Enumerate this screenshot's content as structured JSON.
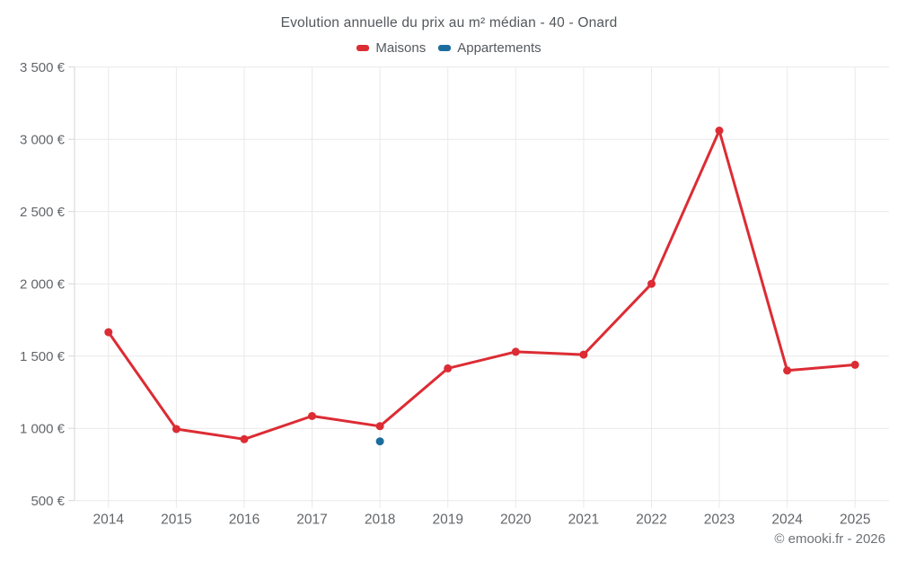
{
  "title": "Evolution annuelle du prix au m² médian - 40 - Onard",
  "attribution": "© emooki.fr - 2026",
  "colors": {
    "background": "#ffffff",
    "grid": "#e9e9e9",
    "axis": "#d6d6d6",
    "tick_text": "#63666a",
    "title_text": "#53575b",
    "attribution_text": "#6e7276"
  },
  "chart_data": {
    "type": "line",
    "title": "Evolution annuelle du prix au m² médian - 40 - Onard",
    "xlabel": "",
    "ylabel": "",
    "x": [
      "2014",
      "2015",
      "2016",
      "2017",
      "2018",
      "2019",
      "2020",
      "2021",
      "2022",
      "2023",
      "2024",
      "2025"
    ],
    "ylim": [
      500,
      3500
    ],
    "grid": true,
    "legend_position": "top-center",
    "yticks": [
      {
        "value": 500,
        "label": "500 €"
      },
      {
        "value": 1000,
        "label": "1 000 €"
      },
      {
        "value": 1500,
        "label": "1 500 €"
      },
      {
        "value": 2000,
        "label": "2 000 €"
      },
      {
        "value": 2500,
        "label": "2 500 €"
      },
      {
        "value": 3000,
        "label": "3 000 €"
      },
      {
        "value": 3500,
        "label": "3 500 €"
      }
    ],
    "series": [
      {
        "name": "Maisons",
        "color": "#dc2c34",
        "values": [
          1665,
          995,
          925,
          1085,
          1015,
          1415,
          1530,
          1510,
          2000,
          3060,
          1400,
          1440
        ]
      },
      {
        "name": "Appartements",
        "color": "#1b6d9e",
        "values": [
          null,
          null,
          null,
          null,
          910,
          null,
          null,
          null,
          null,
          null,
          null,
          null
        ]
      }
    ]
  }
}
